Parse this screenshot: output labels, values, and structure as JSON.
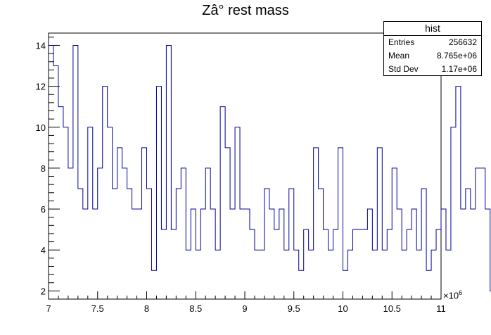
{
  "title": "Zâ° rest mass",
  "stats_box": {
    "name": "hist",
    "rows": [
      {
        "label": "Entries",
        "value": "256632"
      },
      {
        "label": "Mean",
        "value": "8.765e+06"
      },
      {
        "label": "Std Dev",
        "value": "1.17e+06"
      }
    ]
  },
  "x_exponent": {
    "base": "×10",
    "power": "6"
  },
  "chart_data": {
    "type": "bar",
    "style": "step-histogram",
    "line_color": "#000099",
    "xlim": [
      7000000,
      11000000
    ],
    "ylim": [
      1.6,
      14.6
    ],
    "bin_width": 50000,
    "x_tick_values": [
      7,
      7.5,
      8,
      8.5,
      9,
      9.5,
      10,
      10.5,
      11
    ],
    "x_tick_labels": [
      "7",
      "7.5",
      "8",
      "8.5",
      "9",
      "9.5",
      "10",
      "10.5",
      "11"
    ],
    "y_tick_values": [
      2,
      4,
      6,
      8,
      10,
      12,
      14
    ],
    "y_tick_labels": [
      "2",
      "4",
      "6",
      "8",
      "10",
      "12",
      "14"
    ],
    "values": [
      14,
      13,
      11,
      10,
      8,
      14,
      7,
      6,
      10,
      6,
      8,
      12,
      10,
      7,
      9,
      8,
      7,
      6,
      6,
      9,
      7,
      3,
      12,
      5,
      14,
      5,
      7,
      8,
      4,
      6,
      4,
      6,
      8,
      6,
      4,
      11,
      9,
      6,
      10,
      6,
      6,
      5,
      4,
      4,
      7,
      6,
      5,
      6,
      4,
      7,
      4,
      3,
      5,
      4,
      9,
      7,
      5,
      4,
      5,
      9,
      3,
      4,
      5,
      5,
      5,
      6,
      4,
      9,
      4,
      5,
      8,
      6,
      4,
      5,
      6,
      4,
      7,
      3,
      4,
      5,
      6,
      4,
      10,
      12,
      6,
      7,
      6,
      8,
      8,
      6,
      2,
      5,
      3,
      5,
      5,
      3,
      7,
      2,
      5,
      4
    ],
    "grid": false
  }
}
